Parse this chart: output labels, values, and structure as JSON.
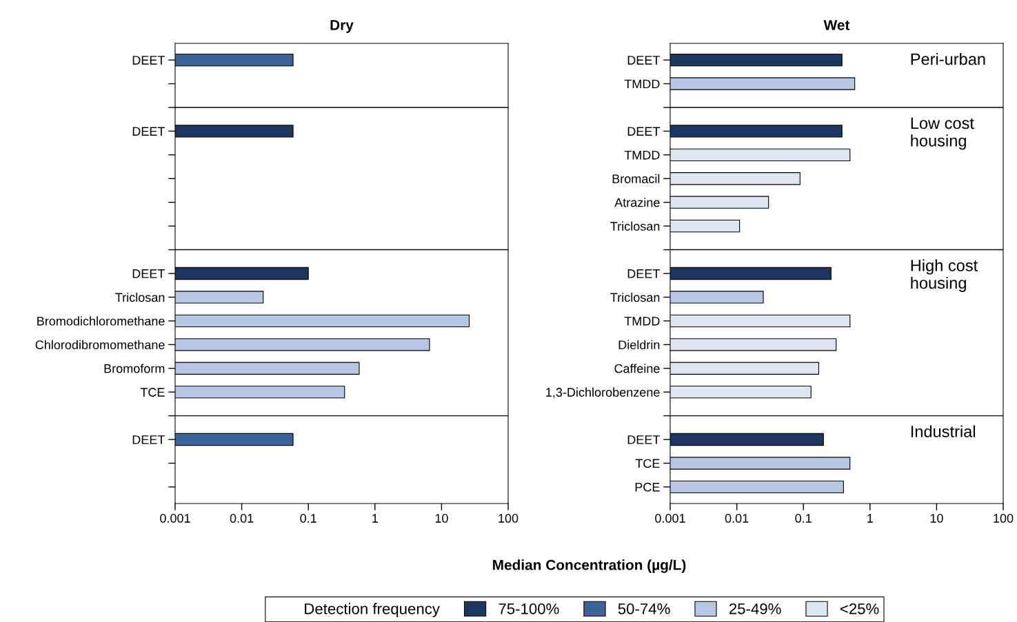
{
  "chart_data": [
    {
      "type": "bar",
      "orientation": "horizontal",
      "log": "x",
      "title": "Dry",
      "categories": [
        "DEET",
        null,
        null,
        "DEET",
        null,
        null,
        null,
        null,
        null,
        "DEET",
        "Triclosan",
        "Bromodichloromethane",
        "Chlorodibromomethane",
        "Bromoform",
        "TCE",
        null,
        "DEET",
        null,
        null
      ],
      "xlim": [
        0.001,
        100
      ],
      "xticks": [
        0.001,
        0.01,
        0.1,
        1,
        10,
        100
      ],
      "series": [
        {
          "color": "#1b365f",
          "values": [
            null,
            null,
            null,
            0.059,
            null,
            null,
            null,
            null,
            null,
            0.1,
            null,
            null,
            null,
            null,
            null,
            null,
            null,
            null,
            null
          ]
        },
        {
          "color": "#3b6499",
          "values": [
            0.059,
            null,
            null,
            null,
            null,
            null,
            null,
            null,
            null,
            null,
            null,
            null,
            null,
            null,
            null,
            null,
            0.059,
            null,
            null
          ]
        },
        {
          "color": "#b5c7e5",
          "values": [
            null,
            null,
            null,
            null,
            null,
            null,
            null,
            null,
            null,
            null,
            0.021,
            26,
            6.6,
            0.58,
            0.35,
            null,
            null,
            null,
            null
          ]
        }
      ]
    },
    {
      "type": "bar",
      "orientation": "horizontal",
      "log": "x",
      "title": "Wet",
      "legend": "bottom",
      "legend_title": "Detection frequency",
      "xlabel": "Median Concentration (µg/L)",
      "annotations": [
        "Peri-urban",
        "Low cost\nhousing",
        "High cost\nhousing",
        "Industrial"
      ],
      "categories": [
        "DEET",
        "TMDD",
        null,
        "DEET",
        "TMDD",
        "Bromacil",
        "Atrazine",
        "Triclosan",
        null,
        "DEET",
        "Triclosan",
        "TMDD",
        "Dieldrin",
        "Caffeine",
        "1,3-Dichlorobenzene",
        null,
        "DEET",
        "TCE",
        "PCE"
      ],
      "xlim": [
        0.001,
        100
      ],
      "xticks": [
        0.001,
        0.01,
        0.1,
        1,
        10,
        100
      ],
      "series": [
        {
          "name": "75-100%",
          "color": "#1b365f",
          "values": [
            0.38,
            null,
            null,
            0.38,
            null,
            null,
            null,
            null,
            null,
            0.26,
            null,
            null,
            null,
            null,
            null,
            null,
            0.2,
            null,
            null
          ]
        },
        {
          "name": "50-74%",
          "color": "#3b6499",
          "values": [
            null,
            null,
            null,
            null,
            null,
            null,
            null,
            null,
            null,
            null,
            null,
            null,
            null,
            null,
            null,
            null,
            null,
            null,
            null
          ]
        },
        {
          "name": "25-49%",
          "color": "#b5c7e5",
          "values": [
            null,
            0.59,
            null,
            null,
            null,
            null,
            null,
            null,
            null,
            null,
            0.025,
            null,
            null,
            null,
            null,
            null,
            null,
            0.5,
            0.4
          ]
        },
        {
          "name": "<25%",
          "color": "#dde6f2",
          "values": [
            null,
            null,
            null,
            null,
            0.5,
            0.089,
            0.03,
            0.011,
            null,
            null,
            null,
            0.5,
            0.31,
            0.17,
            0.13,
            null,
            null,
            null,
            null
          ]
        }
      ]
    }
  ]
}
